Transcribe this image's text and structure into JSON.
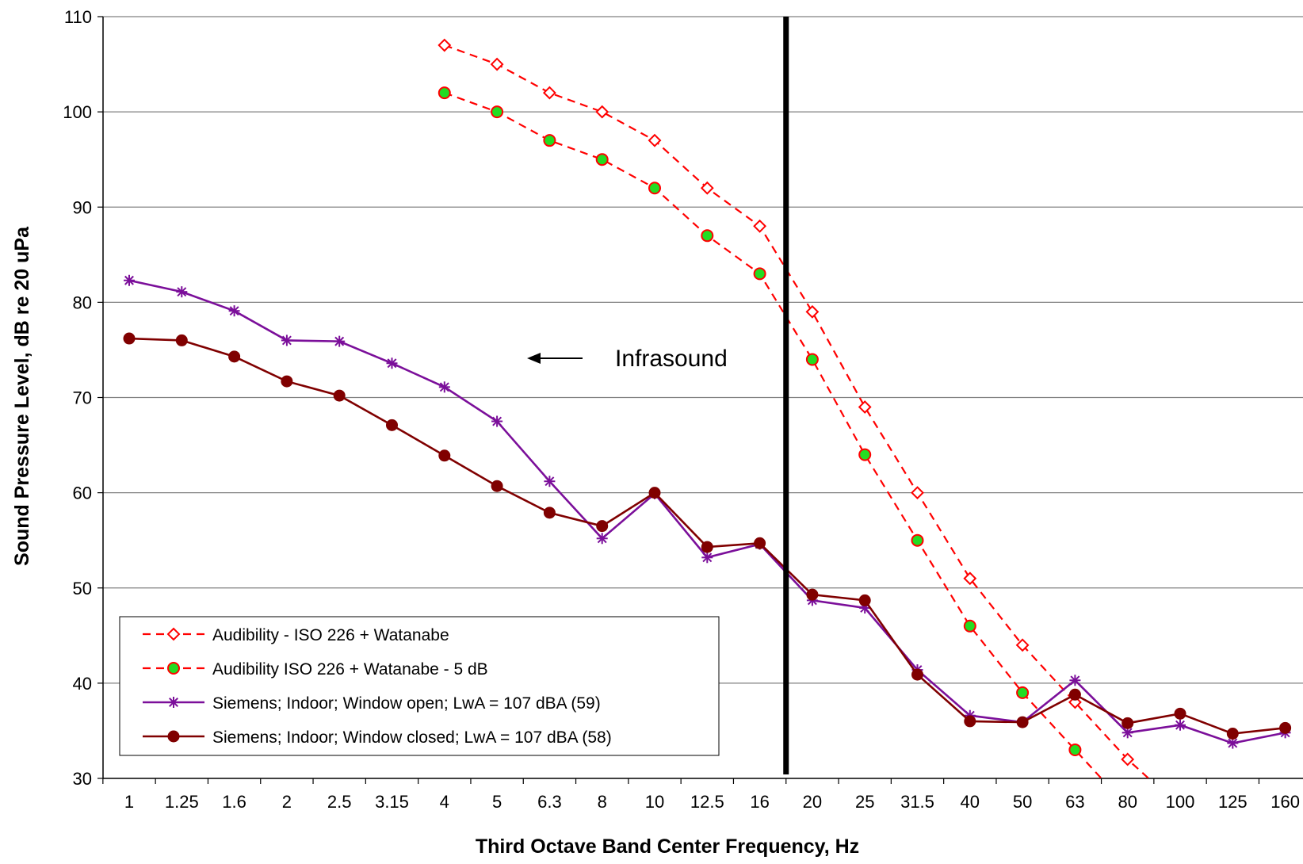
{
  "chart_data": {
    "type": "line",
    "title": "",
    "xlabel": "Third Octave Band Center Frequency, Hz",
    "ylabel": "Sound Pressure Level, dB re 20 uPa",
    "categories": [
      "1",
      "1.25",
      "1.6",
      "2",
      "2.5",
      "3.15",
      "4",
      "5",
      "6.3",
      "8",
      "10",
      "12.5",
      "16",
      "20",
      "25",
      "31.5",
      "40",
      "50",
      "63",
      "80",
      "100",
      "125",
      "160"
    ],
    "ylim": [
      30,
      110
    ],
    "yticks": [
      "30",
      "40",
      "50",
      "60",
      "70",
      "80",
      "90",
      "100",
      "110"
    ],
    "grid": "horizontal",
    "legend_position": "bottom-left",
    "series": [
      {
        "name": "Audibility - ISO 226 + Watanabe",
        "style": "dashed",
        "marker": "diamond-open",
        "color": "#ff0000",
        "values": [
          null,
          null,
          null,
          null,
          null,
          null,
          107,
          105,
          102,
          100,
          97,
          92,
          88,
          79,
          69,
          60,
          51,
          44,
          38,
          32,
          27,
          null,
          null
        ]
      },
      {
        "name": "Audibility ISO 226 + Watanabe - 5 dB",
        "style": "dashed",
        "marker": "circle-green",
        "color": "#ff0000",
        "values": [
          null,
          null,
          null,
          null,
          null,
          null,
          102,
          100,
          97,
          95,
          92,
          87,
          83,
          74,
          64,
          55,
          46,
          39,
          33,
          27,
          22,
          null,
          null
        ]
      },
      {
        "name": "Siemens; Indoor; Window open; LwA = 107 dBA (59)",
        "style": "solid",
        "marker": "star",
        "color": "#7b0f9a",
        "values": [
          82.3,
          81.1,
          79.1,
          76.0,
          75.9,
          73.6,
          71.1,
          67.5,
          61.2,
          55.2,
          59.9,
          53.2,
          54.6,
          48.7,
          47.9,
          41.4,
          36.6,
          35.9,
          40.3,
          34.8,
          35.6,
          33.7,
          34.8
        ]
      },
      {
        "name": "Siemens; Indoor; Window closed; LwA = 107 dBA (58)",
        "style": "solid",
        "marker": "circle-filled",
        "color": "#800000",
        "values": [
          76.2,
          76.0,
          74.3,
          71.7,
          70.2,
          67.1,
          63.9,
          60.7,
          57.9,
          56.5,
          60.0,
          54.3,
          54.7,
          49.3,
          48.7,
          40.9,
          36.0,
          35.9,
          38.8,
          35.8,
          36.8,
          34.7,
          35.3
        ]
      }
    ],
    "annotations": [
      {
        "text": "Infrasound",
        "arrow": "left"
      }
    ],
    "divider_line": "between 16 and 20 Hz"
  }
}
